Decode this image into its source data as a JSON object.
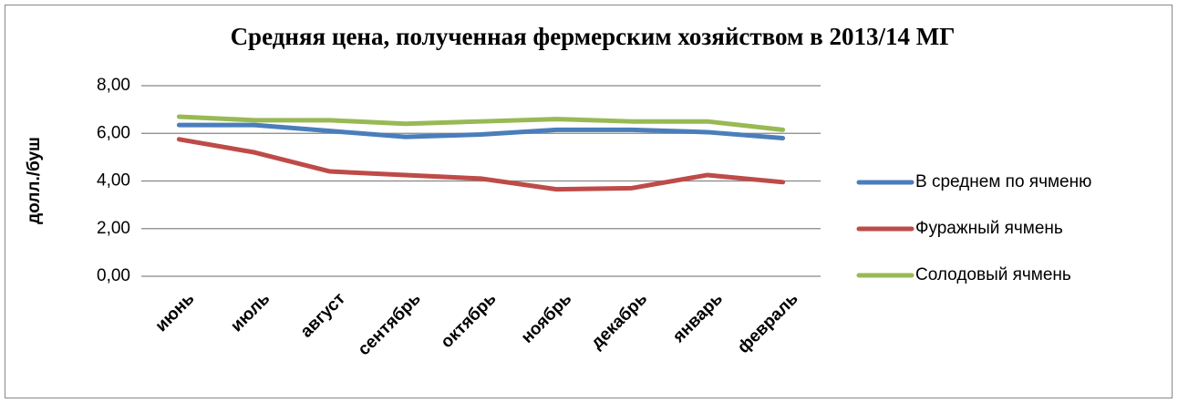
{
  "chart_data": {
    "type": "line",
    "title": "Средняя цена, полученная фермерским хозяйством в 2013/14 МГ",
    "y_label": "долл./буш",
    "categories": [
      "июнь",
      "июль",
      "август",
      "сентябрь",
      "октябрь",
      "ноябрь",
      "декабрь",
      "январь",
      "февраль"
    ],
    "series": [
      {
        "name": "В среднем по ячменю",
        "color": "#4a7ebb",
        "values": [
          6.35,
          6.35,
          6.1,
          5.85,
          5.95,
          6.15,
          6.15,
          6.05,
          5.8
        ]
      },
      {
        "name": "Фуражный ячмень",
        "color": "#be4b48",
        "values": [
          5.75,
          5.2,
          4.4,
          4.25,
          4.1,
          3.65,
          3.7,
          4.25,
          3.95
        ]
      },
      {
        "name": "Солодовый ячмень",
        "color": "#98b954",
        "values": [
          6.7,
          6.55,
          6.55,
          6.4,
          6.5,
          6.6,
          6.5,
          6.5,
          6.15
        ]
      }
    ],
    "ylim": [
      0,
      8
    ],
    "yticks": [
      {
        "value": 0,
        "label": "0,00"
      },
      {
        "value": 2,
        "label": "2,00"
      },
      {
        "value": 4,
        "label": "4,00"
      },
      {
        "value": 6,
        "label": "6,00"
      },
      {
        "value": 8,
        "label": "8,00"
      }
    ],
    "grid": true,
    "legend": "right"
  }
}
